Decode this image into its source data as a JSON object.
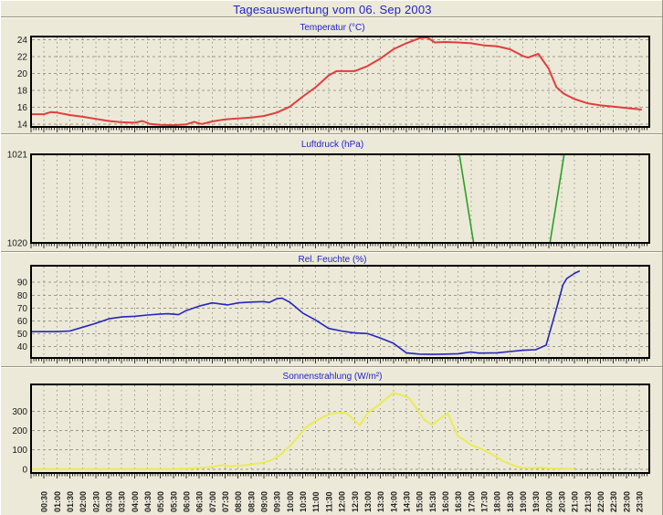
{
  "header": {
    "title": "Tagesauswertung vom 06. Sep 2003"
  },
  "colors": {
    "accent_blue_text": "#2323c8",
    "background": "#ece9d8",
    "grid": "#9a9a8e",
    "axis_frame": "#000000",
    "temperature_line": "#e33d3d",
    "pressure_line": "#2aa02a",
    "humidity_line": "#2525bd",
    "solar_line": "#ededs55"
  },
  "x_axis": {
    "tick_labels": [
      "00:30",
      "01:00",
      "01:30",
      "02:00",
      "02:30",
      "03:00",
      "03:30",
      "04:00",
      "04:30",
      "05:00",
      "05:30",
      "06:00",
      "06:30",
      "07:00",
      "07:30",
      "08:00",
      "08:30",
      "09:00",
      "09:30",
      "10:00",
      "10:30",
      "11:00",
      "11:30",
      "12:00",
      "12:30",
      "13:00",
      "13:30",
      "14:00",
      "14:30",
      "15:00",
      "15:30",
      "16:00",
      "16:30",
      "17:00",
      "17:30",
      "18:00",
      "18:30",
      "19:00",
      "19:30",
      "20:00",
      "20:30",
      "21:00",
      "21:30",
      "22:00",
      "22:30",
      "23:00",
      "23:30"
    ],
    "tick_interval_minutes": 30,
    "minor_tick_minutes": 6,
    "start_hour": 0,
    "end_hour": 23.5
  },
  "chart_data": [
    {
      "type": "line",
      "title": "Temperatur (°C)",
      "line_color": "#e33d3d",
      "line_width": 2,
      "ylim": [
        13.7,
        24.4
      ],
      "yticks": [
        14,
        16,
        18,
        20,
        22,
        24
      ],
      "grid": true,
      "series": [
        {
          "name": "Temperatur",
          "points": [
            [
              0,
              15.2
            ],
            [
              0.5,
              15.2
            ],
            [
              0.75,
              15.45
            ],
            [
              1,
              15.4
            ],
            [
              1.5,
              15.1
            ],
            [
              2,
              14.9
            ],
            [
              2.5,
              14.65
            ],
            [
              3,
              14.4
            ],
            [
              3.5,
              14.25
            ],
            [
              4,
              14.2
            ],
            [
              4.3,
              14.4
            ],
            [
              4.6,
              14.05
            ],
            [
              5,
              13.95
            ],
            [
              5.5,
              13.9
            ],
            [
              6,
              14.0
            ],
            [
              6.3,
              14.3
            ],
            [
              6.6,
              14.05
            ],
            [
              7,
              14.35
            ],
            [
              7.5,
              14.6
            ],
            [
              8,
              14.7
            ],
            [
              8.5,
              14.8
            ],
            [
              9,
              15.0
            ],
            [
              9.5,
              15.4
            ],
            [
              10,
              16.1
            ],
            [
              10.5,
              17.3
            ],
            [
              11,
              18.4
            ],
            [
              11.5,
              19.8
            ],
            [
              11.8,
              20.3
            ],
            [
              12.5,
              20.3
            ],
            [
              13,
              20.9
            ],
            [
              13.5,
              21.8
            ],
            [
              14,
              22.9
            ],
            [
              14.5,
              23.6
            ],
            [
              15,
              24.2
            ],
            [
              15.3,
              24.3
            ],
            [
              15.6,
              23.7
            ],
            [
              16,
              23.75
            ],
            [
              16.5,
              23.7
            ],
            [
              17,
              23.6
            ],
            [
              17.5,
              23.35
            ],
            [
              18,
              23.25
            ],
            [
              18.5,
              22.9
            ],
            [
              19,
              22.1
            ],
            [
              19.2,
              21.9
            ],
            [
              19.6,
              22.35
            ],
            [
              20,
              20.6
            ],
            [
              20.3,
              18.4
            ],
            [
              20.6,
              17.6
            ],
            [
              21,
              17.0
            ],
            [
              21.5,
              16.5
            ],
            [
              22,
              16.25
            ],
            [
              22.5,
              16.1
            ],
            [
              23,
              15.95
            ],
            [
              23.6,
              15.75
            ]
          ]
        }
      ]
    },
    {
      "type": "line",
      "title": "Luftdruck (hPa)",
      "line_color": "#2aa02a",
      "line_width": 1.6,
      "ylim": [
        1020,
        1021
      ],
      "yticks": [
        1021,
        1020
      ],
      "grid": true,
      "series": [
        {
          "name": "Luftdruck",
          "points": [
            [
              0,
              1021
            ],
            [
              16.55,
              1021
            ],
            [
              17.1,
              1020
            ],
            [
              20.05,
              1020
            ],
            [
              20.6,
              1021
            ],
            [
              21.2,
              1021
            ]
          ]
        }
      ]
    },
    {
      "type": "line",
      "title": "Rel. Feuchte (%)",
      "line_color": "#2525bd",
      "line_width": 1.6,
      "ylim": [
        31,
        103
      ],
      "yticks": [
        40,
        50,
        60,
        70,
        80,
        90
      ],
      "grid": true,
      "series": [
        {
          "name": "Rel. Feuchte",
          "points": [
            [
              0,
              51.5
            ],
            [
              0.5,
              51.5
            ],
            [
              1,
              51.5
            ],
            [
              1.5,
              52
            ],
            [
              2,
              55
            ],
            [
              2.5,
              58
            ],
            [
              3,
              61.5
            ],
            [
              3.5,
              63
            ],
            [
              4,
              63.5
            ],
            [
              4.5,
              64.5
            ],
            [
              5,
              65.3
            ],
            [
              5.3,
              65.5
            ],
            [
              5.7,
              64.8
            ],
            [
              6,
              68
            ],
            [
              6.5,
              71.5
            ],
            [
              7,
              74
            ],
            [
              7.3,
              73.2
            ],
            [
              7.6,
              72.4
            ],
            [
              8,
              74
            ],
            [
              8.5,
              74.6
            ],
            [
              9,
              75
            ],
            [
              9.2,
              74.3
            ],
            [
              9.5,
              77.3
            ],
            [
              9.7,
              77.6
            ],
            [
              10,
              74.5
            ],
            [
              10.5,
              66
            ],
            [
              11,
              60.5
            ],
            [
              11.5,
              54
            ],
            [
              12,
              52
            ],
            [
              12.5,
              50.5
            ],
            [
              13,
              50
            ],
            [
              13.5,
              46.5
            ],
            [
              14,
              42.5
            ],
            [
              14.5,
              35
            ],
            [
              15,
              34
            ],
            [
              15.5,
              33.8
            ],
            [
              16,
              34
            ],
            [
              16.5,
              34.3
            ],
            [
              17,
              35.6
            ],
            [
              17.3,
              34.8
            ],
            [
              18,
              35
            ],
            [
              18.5,
              36
            ],
            [
              19,
              37
            ],
            [
              19.5,
              37.4
            ],
            [
              19.9,
              41
            ],
            [
              20.1,
              55
            ],
            [
              20.35,
              73
            ],
            [
              20.55,
              88
            ],
            [
              20.7,
              93
            ],
            [
              21,
              97
            ],
            [
              21.2,
              99
            ]
          ]
        }
      ]
    },
    {
      "type": "line",
      "title": "Sonnenstrahlung (W/m²)",
      "line_color": "#ebeb55",
      "line_width": 2,
      "ylim": [
        -20,
        440
      ],
      "yticks": [
        0,
        100,
        200,
        300
      ],
      "grid": true,
      "series": [
        {
          "name": "Sonnenstrahlung",
          "points": [
            [
              0,
              0
            ],
            [
              5.5,
              0
            ],
            [
              5.8,
              2
            ],
            [
              6,
              3
            ],
            [
              6.5,
              6
            ],
            [
              7,
              12
            ],
            [
              7.4,
              21
            ],
            [
              7.7,
              15
            ],
            [
              8,
              17
            ],
            [
              8.5,
              24
            ],
            [
              9,
              35
            ],
            [
              9.3,
              48
            ],
            [
              9.6,
              70
            ],
            [
              10,
              120
            ],
            [
              10.3,
              165
            ],
            [
              10.6,
              215
            ],
            [
              11,
              250
            ],
            [
              11.3,
              272
            ],
            [
              11.6,
              288
            ],
            [
              12,
              295
            ],
            [
              12.2,
              290
            ],
            [
              12.7,
              228
            ],
            [
              13,
              290
            ],
            [
              13.4,
              330
            ],
            [
              13.7,
              365
            ],
            [
              14,
              395
            ],
            [
              14.3,
              385
            ],
            [
              14.6,
              370
            ],
            [
              14.9,
              315
            ],
            [
              15.2,
              255
            ],
            [
              15.5,
              230
            ],
            [
              15.8,
              262
            ],
            [
              16.1,
              290
            ],
            [
              16.3,
              230
            ],
            [
              16.5,
              170
            ],
            [
              16.7,
              155
            ],
            [
              17,
              125
            ],
            [
              17.4,
              105
            ],
            [
              17.9,
              70
            ],
            [
              18.3,
              38
            ],
            [
              18.8,
              12
            ],
            [
              19,
              6
            ],
            [
              19.3,
              5
            ],
            [
              19.6,
              8
            ],
            [
              20,
              4
            ],
            [
              20.5,
              2
            ],
            [
              21,
              1
            ]
          ]
        }
      ]
    }
  ]
}
